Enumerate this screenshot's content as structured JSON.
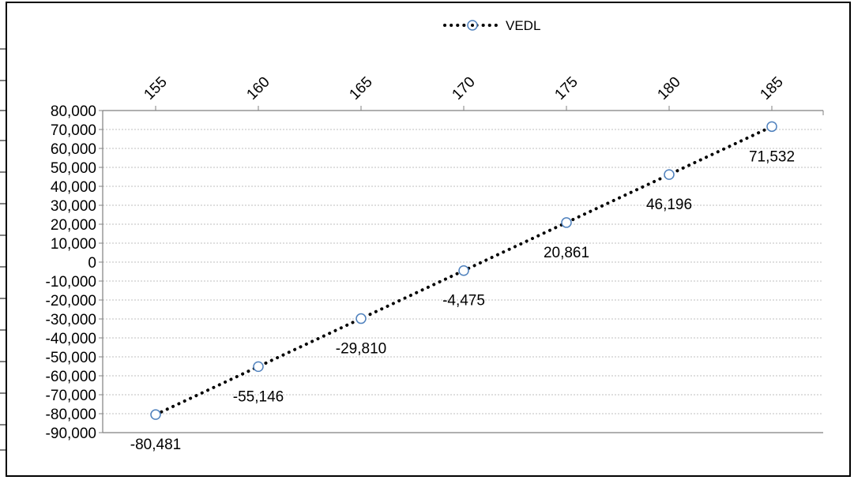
{
  "chart_data": {
    "type": "line",
    "title": "",
    "xlabel": "",
    "ylabel": "",
    "x": [
      155,
      160,
      165,
      170,
      175,
      180,
      185
    ],
    "x_tick_labels": [
      "155",
      "160",
      "165",
      "170",
      "175",
      "180",
      "185"
    ],
    "xlim": [
      155,
      185
    ],
    "x_axis_position": "top",
    "ylim": [
      -90000,
      80000
    ],
    "y_tick_labels": [
      "80,000",
      "70,000",
      "60,000",
      "50,000",
      "40,000",
      "30,000",
      "20,000",
      "10,000",
      "0",
      "-10,000",
      "-20,000",
      "-30,000",
      "-40,000",
      "-50,000",
      "-60,000",
      "-70,000",
      "-80,000",
      "-90,000"
    ],
    "grid": true,
    "legend": "top-center",
    "series": [
      {
        "name": "VEDL",
        "values": [
          -80481,
          -55146,
          -29810,
          -4475,
          20861,
          46196,
          71532
        ],
        "data_labels": [
          "-80,481",
          "-55,146",
          "-29,810",
          "-4,475",
          "20,861",
          "46,196",
          "71,532"
        ],
        "line_color": "#000000",
        "marker_color": "#4f81bd",
        "line_style": "dotted",
        "marker": "hollow-circle"
      }
    ]
  }
}
